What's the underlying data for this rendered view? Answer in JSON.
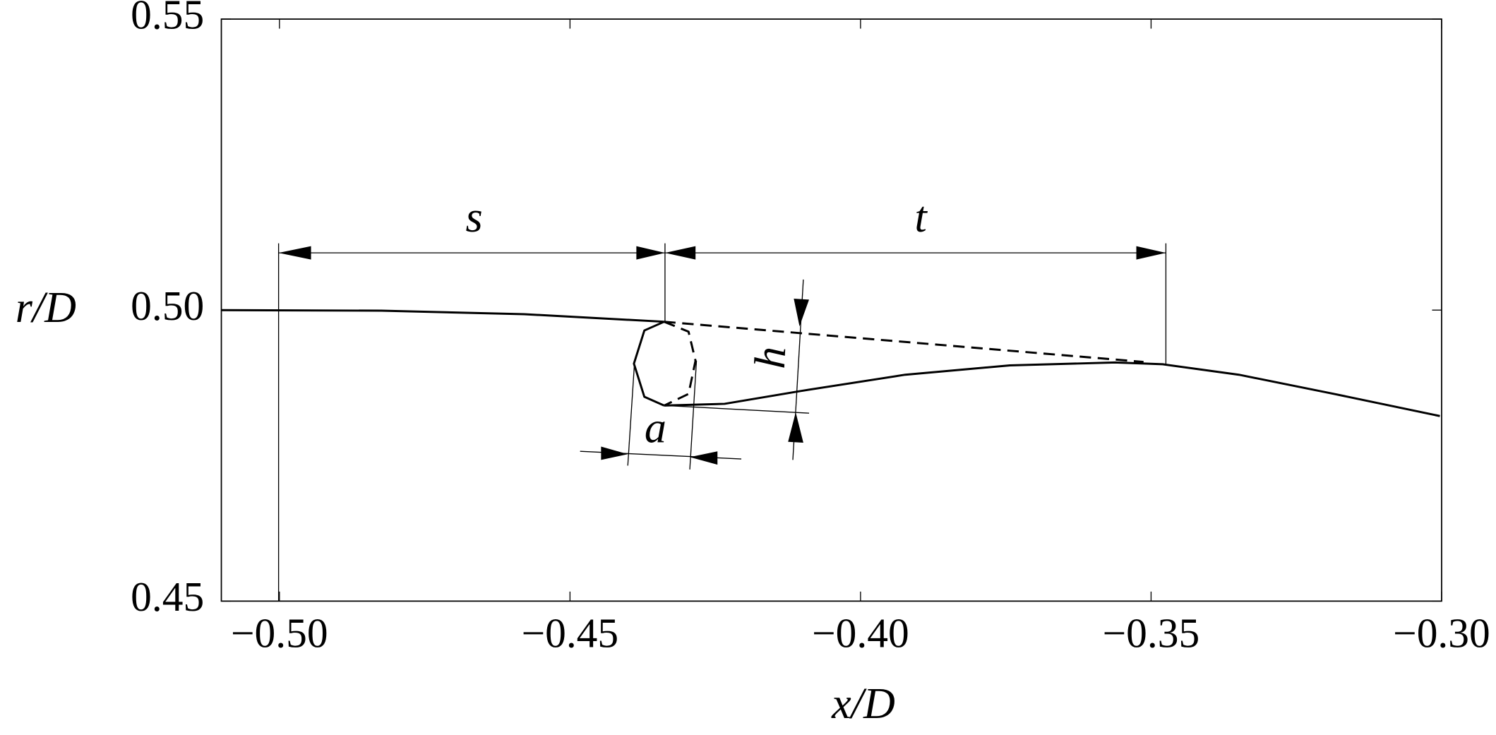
{
  "chart_data": {
    "type": "line",
    "xlabel": "x/D",
    "ylabel": "r/D",
    "xlim": [
      -0.51,
      -0.3
    ],
    "ylim": [
      0.45,
      0.55
    ],
    "xticks": [
      {
        "value": -0.5,
        "label": "−0.50"
      },
      {
        "value": -0.45,
        "label": "−0.45"
      },
      {
        "value": -0.4,
        "label": "−0.40"
      },
      {
        "value": -0.35,
        "label": "−0.35"
      },
      {
        "value": -0.3,
        "label": "−0.30"
      }
    ],
    "yticks": [
      0.45,
      {
        "value": 0.5,
        "label": "0.50"
      },
      0.55
    ],
    "grid": false,
    "annotations": [
      "s",
      "t",
      "h",
      "a"
    ],
    "series": [
      {
        "color": "#000000",
        "dashed": false,
        "x": [
          -0.51,
          -0.4825,
          -0.4579,
          -0.4338
        ],
        "values": [
          0.5,
          0.4999,
          0.4993,
          0.498
        ]
      },
      {
        "color": "#000000",
        "dashed": false,
        "x": [
          -0.4338,
          -0.4372,
          -0.439,
          -0.4372,
          -0.4338
        ],
        "values": [
          0.498,
          0.4965,
          0.4908,
          0.4851,
          0.4836
        ]
      },
      {
        "color": "#000000",
        "dashed": true,
        "x": [
          -0.4338,
          -0.4296,
          -0.4284,
          -0.4296,
          -0.4338
        ],
        "values": [
          0.498,
          0.4963,
          0.4913,
          0.4856,
          0.4836
        ]
      },
      {
        "color": "#000000",
        "dashed": false,
        "x": [
          -0.4338,
          -0.4234,
          -0.4103,
          -0.3923,
          -0.3743,
          -0.3562,
          -0.348,
          -0.3349,
          -0.3185,
          -0.3003
        ],
        "values": [
          0.4836,
          0.4839,
          0.4861,
          0.4889,
          0.4905,
          0.491,
          0.4907,
          0.4889,
          0.4856,
          0.4818
        ]
      },
      {
        "color": "#000000",
        "dashed": true,
        "x": [
          -0.4338,
          -0.3513
        ],
        "values": [
          0.498,
          0.4911
        ]
      }
    ]
  }
}
